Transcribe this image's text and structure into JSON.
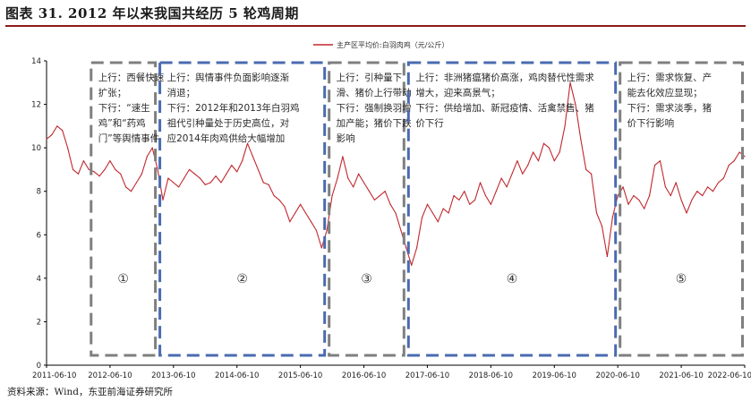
{
  "title": "图表 31. 2012 年以来我国共经历 5 轮鸡周期",
  "source": "资料来源：Wind，东亚前海证券研究所",
  "colors": {
    "line": "#c0272d",
    "grey_box": "#7f7f7f",
    "blue_box": "#4a6bb0",
    "rule": "#8a1a1a"
  },
  "chart_data": {
    "type": "line",
    "legend": "主产区平均价:白羽肉鸡（元/公斤）",
    "legend_position": "top-center",
    "ylim": [
      0,
      14
    ],
    "yticks": [
      0,
      2,
      4,
      6,
      8,
      10,
      12,
      14
    ],
    "xlim": [
      "2011-06-10",
      "2022-06-10"
    ],
    "xticks": [
      "2011-06-10",
      "2012-06-10",
      "2013-06-10",
      "2014-06-10",
      "2015-06-10",
      "2016-06-10",
      "2017-06-10",
      "2018-06-10",
      "2019-06-10",
      "2020-06-10",
      "2021-06-10",
      "2022-06-10"
    ],
    "grid": false,
    "series": [
      {
        "points": [
          [
            "2011-06",
            10.4
          ],
          [
            "2011-07",
            10.6
          ],
          [
            "2011-08",
            11.0
          ],
          [
            "2011-09",
            10.8
          ],
          [
            "2011-10",
            10.0
          ],
          [
            "2011-11",
            9.0
          ],
          [
            "2011-12",
            8.8
          ],
          [
            "2012-01",
            9.4
          ],
          [
            "2012-02",
            9.0
          ],
          [
            "2012-03",
            8.9
          ],
          [
            "2012-04",
            8.7
          ],
          [
            "2012-05",
            9.0
          ],
          [
            "2012-06",
            9.4
          ],
          [
            "2012-07",
            9.0
          ],
          [
            "2012-08",
            8.8
          ],
          [
            "2012-09",
            8.2
          ],
          [
            "2012-10",
            8.0
          ],
          [
            "2012-11",
            8.4
          ],
          [
            "2012-12",
            8.8
          ],
          [
            "2013-01",
            9.6
          ],
          [
            "2013-02",
            10.0
          ],
          [
            "2013-03",
            9.0
          ],
          [
            "2013-04",
            7.6
          ],
          [
            "2013-05",
            8.6
          ],
          [
            "2013-06",
            8.4
          ],
          [
            "2013-07",
            8.2
          ],
          [
            "2013-08",
            8.6
          ],
          [
            "2013-09",
            9.0
          ],
          [
            "2013-10",
            8.8
          ],
          [
            "2013-11",
            8.6
          ],
          [
            "2013-12",
            8.3
          ],
          [
            "2014-01",
            8.4
          ],
          [
            "2014-02",
            8.7
          ],
          [
            "2014-03",
            8.4
          ],
          [
            "2014-04",
            8.8
          ],
          [
            "2014-05",
            9.2
          ],
          [
            "2014-06",
            8.9
          ],
          [
            "2014-07",
            9.4
          ],
          [
            "2014-08",
            10.2
          ],
          [
            "2014-09",
            9.6
          ],
          [
            "2014-10",
            9.0
          ],
          [
            "2014-11",
            8.4
          ],
          [
            "2014-12",
            8.3
          ],
          [
            "2015-01",
            7.8
          ],
          [
            "2015-02",
            7.6
          ],
          [
            "2015-03",
            7.3
          ],
          [
            "2015-04",
            6.6
          ],
          [
            "2015-05",
            7.0
          ],
          [
            "2015-06",
            7.4
          ],
          [
            "2015-07",
            7.0
          ],
          [
            "2015-08",
            6.6
          ],
          [
            "2015-09",
            6.2
          ],
          [
            "2015-10",
            5.4
          ],
          [
            "2015-11",
            6.2
          ],
          [
            "2015-12",
            7.8
          ],
          [
            "2016-01",
            8.6
          ],
          [
            "2016-02",
            9.6
          ],
          [
            "2016-03",
            8.6
          ],
          [
            "2016-04",
            8.2
          ],
          [
            "2016-05",
            8.8
          ],
          [
            "2016-06",
            8.4
          ],
          [
            "2016-07",
            8.0
          ],
          [
            "2016-08",
            7.6
          ],
          [
            "2016-09",
            7.8
          ],
          [
            "2016-10",
            8.0
          ],
          [
            "2016-11",
            7.4
          ],
          [
            "2016-12",
            7.0
          ],
          [
            "2017-01",
            6.2
          ],
          [
            "2017-02",
            5.4
          ],
          [
            "2017-03",
            4.6
          ],
          [
            "2017-04",
            5.4
          ],
          [
            "2017-05",
            6.8
          ],
          [
            "2017-06",
            7.4
          ],
          [
            "2017-07",
            7.0
          ],
          [
            "2017-08",
            6.6
          ],
          [
            "2017-09",
            7.2
          ],
          [
            "2017-10",
            7.0
          ],
          [
            "2017-11",
            7.8
          ],
          [
            "2017-12",
            7.6
          ],
          [
            "2018-01",
            8.0
          ],
          [
            "2018-02",
            7.4
          ],
          [
            "2018-03",
            7.6
          ],
          [
            "2018-04",
            8.4
          ],
          [
            "2018-05",
            7.8
          ],
          [
            "2018-06",
            7.4
          ],
          [
            "2018-07",
            8.0
          ],
          [
            "2018-08",
            8.6
          ],
          [
            "2018-09",
            8.2
          ],
          [
            "2018-10",
            8.8
          ],
          [
            "2018-11",
            9.4
          ],
          [
            "2018-12",
            8.8
          ],
          [
            "2019-01",
            9.2
          ],
          [
            "2019-02",
            9.8
          ],
          [
            "2019-03",
            9.4
          ],
          [
            "2019-04",
            10.2
          ],
          [
            "2019-05",
            10.0
          ],
          [
            "2019-06",
            9.4
          ],
          [
            "2019-07",
            9.8
          ],
          [
            "2019-08",
            11.0
          ],
          [
            "2019-09",
            13.0
          ],
          [
            "2019-10",
            12.0
          ],
          [
            "2019-11",
            10.4
          ],
          [
            "2019-12",
            9.0
          ],
          [
            "2020-01",
            8.8
          ],
          [
            "2020-02",
            7.0
          ],
          [
            "2020-03",
            6.4
          ],
          [
            "2020-04",
            5.0
          ],
          [
            "2020-05",
            6.8
          ],
          [
            "2020-06",
            7.8
          ],
          [
            "2020-07",
            8.2
          ],
          [
            "2020-08",
            7.4
          ],
          [
            "2020-09",
            7.8
          ],
          [
            "2020-10",
            7.6
          ],
          [
            "2020-11",
            7.2
          ],
          [
            "2020-12",
            7.8
          ],
          [
            "2021-01",
            9.2
          ],
          [
            "2021-02",
            9.4
          ],
          [
            "2021-03",
            8.2
          ],
          [
            "2021-04",
            7.8
          ],
          [
            "2021-05",
            8.4
          ],
          [
            "2021-06",
            7.6
          ],
          [
            "2021-07",
            7.0
          ],
          [
            "2021-08",
            7.6
          ],
          [
            "2021-09",
            8.0
          ],
          [
            "2021-10",
            7.8
          ],
          [
            "2021-11",
            8.2
          ],
          [
            "2021-12",
            8.0
          ],
          [
            "2022-01",
            8.4
          ],
          [
            "2022-02",
            8.6
          ],
          [
            "2022-03",
            9.2
          ],
          [
            "2022-04",
            9.4
          ],
          [
            "2022-05",
            9.8
          ],
          [
            "2022-06",
            9.6
          ]
        ]
      }
    ],
    "cycles": [
      {
        "num": "①",
        "start": "2012-02",
        "end": "2013-03",
        "style": "grey",
        "lines": [
          "上行：西餐快速",
          "扩张；",
          "下行：“速生",
          "鸡”和“药鸡",
          "门”等舆情事件"
        ]
      },
      {
        "num": "②",
        "start": "2013-03",
        "end": "2015-11",
        "style": "blue",
        "lines": [
          "上行：舆情事件负面影响逐渐",
          "消退；",
          "下行：2012年和2013年白羽鸡",
          "祖代引种量处于历史高位，对",
          "应2014年肉鸡供给大幅增加"
        ]
      },
      {
        "num": "③",
        "start": "2015-11",
        "end": "2017-02",
        "style": "grey",
        "lines": [
          "上行：引种量下",
          "滑、猪价上行带动",
          "下行：强制换羽增",
          "加产能；猪价下跌",
          "影响"
        ]
      },
      {
        "num": "④",
        "start": "2017-02",
        "end": "2020-06",
        "style": "blue",
        "lines": [
          "上行：非洲猪瘟猪价高涨，鸡肉替代性需求",
          "增大，迎来高景气；",
          "下行：供给增加、新冠疫情、活禽禁售、猪",
          "价下行"
        ]
      },
      {
        "num": "⑤",
        "start": "2020-06",
        "end": "2022-06",
        "style": "grey",
        "lines": [
          "上行：需求恢复、产",
          "能去化效应显现；",
          "下行：需求淡季，猪",
          "价下行影响"
        ]
      }
    ]
  }
}
